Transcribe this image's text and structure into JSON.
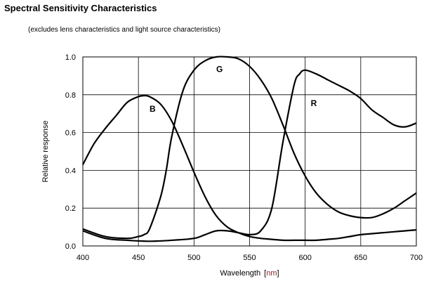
{
  "page": {
    "title": "Spectral Sensitivity Characteristics",
    "subtitle": "(excludes lens characteristics and light source characteristics)"
  },
  "chart_data": {
    "type": "line",
    "title": "",
    "xlabel": "Wavelength",
    "xunit": "nm",
    "ylabel": "Relative response",
    "xlim": [
      400,
      700
    ],
    "ylim": [
      0,
      1.0
    ],
    "xticks": [
      400,
      450,
      500,
      550,
      600,
      650,
      700
    ],
    "yticks": [
      0.0,
      0.2,
      0.4,
      0.6,
      0.8,
      1.0
    ],
    "ytick_labels": [
      "0.0",
      "0.2",
      "0.4",
      "0.6",
      "0.8",
      "1.0"
    ],
    "grid": true,
    "line_color": "#000000",
    "series": [
      {
        "name": "B",
        "label_at": [
          460,
          0.71
        ],
        "x": [
          400,
          410,
          420,
          430,
          440,
          450,
          455,
          460,
          470,
          480,
          490,
          500,
          510,
          520,
          530,
          540,
          550,
          560,
          570,
          580,
          590,
          600,
          610,
          620,
          630,
          640,
          650,
          660,
          670,
          680,
          690,
          700
        ],
        "y": [
          0.43,
          0.54,
          0.62,
          0.69,
          0.76,
          0.79,
          0.795,
          0.79,
          0.75,
          0.66,
          0.53,
          0.39,
          0.26,
          0.16,
          0.1,
          0.07,
          0.05,
          0.04,
          0.035,
          0.03,
          0.03,
          0.03,
          0.03,
          0.035,
          0.04,
          0.05,
          0.06,
          0.065,
          0.07,
          0.075,
          0.08,
          0.085
        ]
      },
      {
        "name": "G",
        "label_at": [
          520,
          0.92
        ],
        "x": [
          400,
          420,
          440,
          450,
          455,
          460,
          470,
          475,
          480,
          490,
          500,
          510,
          520,
          530,
          540,
          550,
          560,
          570,
          580,
          590,
          600,
          610,
          620,
          630,
          640,
          650,
          660,
          670,
          680,
          690,
          700
        ],
        "y": [
          0.09,
          0.05,
          0.04,
          0.05,
          0.06,
          0.09,
          0.26,
          0.4,
          0.58,
          0.82,
          0.93,
          0.98,
          1.0,
          1.0,
          0.99,
          0.95,
          0.88,
          0.78,
          0.64,
          0.49,
          0.37,
          0.28,
          0.22,
          0.18,
          0.16,
          0.15,
          0.15,
          0.17,
          0.2,
          0.24,
          0.28
        ]
      },
      {
        "name": "R",
        "label_at": [
          605,
          0.74
        ],
        "x": [
          400,
          420,
          440,
          460,
          480,
          500,
          510,
          520,
          530,
          540,
          550,
          560,
          570,
          580,
          590,
          595,
          600,
          610,
          620,
          630,
          640,
          650,
          660,
          670,
          680,
          690,
          700
        ],
        "y": [
          0.08,
          0.04,
          0.03,
          0.025,
          0.03,
          0.04,
          0.06,
          0.08,
          0.08,
          0.07,
          0.06,
          0.08,
          0.2,
          0.55,
          0.85,
          0.91,
          0.93,
          0.91,
          0.88,
          0.85,
          0.82,
          0.78,
          0.72,
          0.68,
          0.64,
          0.63,
          0.65
        ]
      }
    ]
  }
}
